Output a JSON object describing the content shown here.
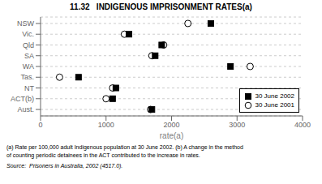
{
  "chart_data": {
    "type": "scatter",
    "title": "11.32   INDIGENOUS IMPRISONMENT RATES(a)",
    "orientation": "horizontal",
    "categories": [
      "NSW",
      "Vic.",
      "Qld",
      "SA",
      "WA",
      "Tas.",
      "NT",
      "ACT(b)",
      "Aust."
    ],
    "series": [
      {
        "name": "30 June 2002",
        "color": "#000000",
        "marker": "square",
        "values": [
          2600,
          1350,
          1850,
          1750,
          2900,
          580,
          1150,
          1100,
          1700
        ]
      },
      {
        "name": "30 June 2001",
        "color": "#000000",
        "marker": "circle",
        "values": [
          2250,
          1280,
          1880,
          1700,
          3200,
          290,
          1100,
          1000,
          1680
        ]
      }
    ],
    "xlabel": "rate(a)",
    "xlim": [
      0,
      4000
    ],
    "xticks": [
      0,
      1000,
      2000,
      3000,
      4000
    ],
    "grid": true,
    "legend": "lower right",
    "annotations": [
      "(a) Rate per 100,000 adult Indigenous population at 30 June 2002. (b) A change in the method",
      "of counting periodic detainees in the ACT contributed to the increase in rates.",
      "Source:  Prisoners in Australia, 2002 (4517.0)."
    ]
  }
}
